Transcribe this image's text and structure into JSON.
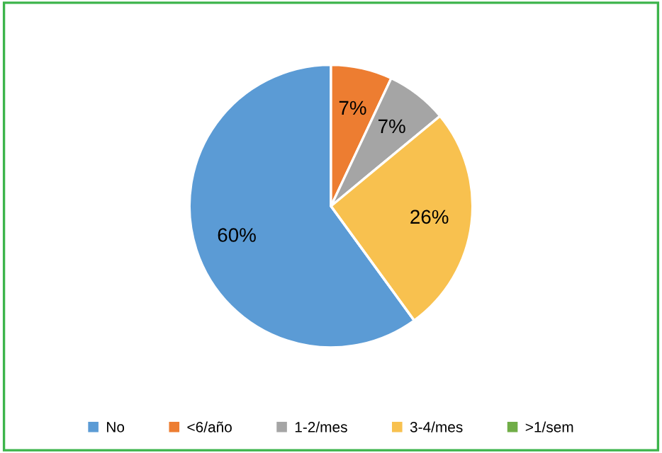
{
  "chart_data": {
    "type": "pie",
    "categories": [
      "No",
      "<6/año",
      "1-2/mes",
      "3-4/mes",
      ">1/sem"
    ],
    "values": [
      60,
      7,
      7,
      26,
      0
    ],
    "colors": [
      "#5b9bd5",
      "#ed7d31",
      "#a5a5a5",
      "#f8c14f",
      "#70ad47"
    ],
    "value_labels": [
      "60%",
      "7%",
      "7%",
      "26%",
      null
    ],
    "legend": "bottom"
  }
}
